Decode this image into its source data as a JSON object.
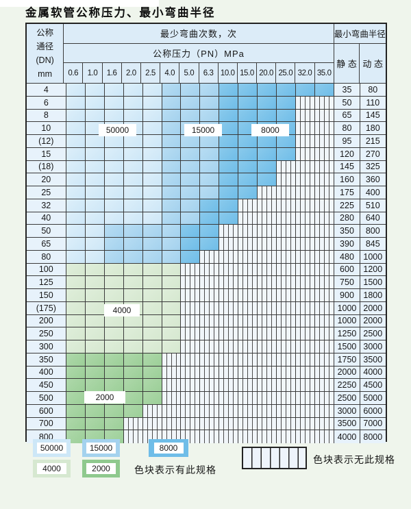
{
  "title": "金属软管公称压力、最小弯曲半径",
  "colors": {
    "c50000": "#cde7f7",
    "c15000": "#a4d2ee",
    "c8000": "#6fbde8",
    "c4000": "#d6e8d0",
    "c2000": "#9ccf98",
    "grid": "#3a3a3a",
    "page_background": "#eff5ec"
  },
  "table": {
    "corner": {
      "line1": "公称",
      "line2": "通径",
      "line3": "(DN)",
      "line4": "mm"
    },
    "bend_cycles_header": "最少弯曲次数，次",
    "pressure_header": "公称压力（PN）MPa",
    "radius_header": "最小弯曲半径",
    "static_header": "静 态",
    "dynamic_header": "动 态",
    "pressure_columns": [
      "0.6",
      "1.0",
      "1.6",
      "2.0",
      "2.5",
      "4.0",
      "5.0",
      "6.3",
      "10.0",
      "15.0",
      "20.0",
      "25.0",
      "32.0",
      "35.0"
    ],
    "cell_legend_map": {
      "L": "50000",
      "M": "15000",
      "D": "8000",
      "G": "4000",
      "E": "2000",
      "X": "no-spec-hatched"
    },
    "rows": [
      {
        "dn": "4",
        "cells": "LLLLLMMMDDDDDD",
        "static": "35",
        "dynamic": "80"
      },
      {
        "dn": "6",
        "cells": "LLLLLMMMDDDDXX",
        "static": "50",
        "dynamic": "110"
      },
      {
        "dn": "8",
        "cells": "LLLLLMMMDDDDXX",
        "static": "65",
        "dynamic": "145"
      },
      {
        "dn": "10",
        "cells": "LLLLLMMMDDDDXX",
        "static": "80",
        "dynamic": "180"
      },
      {
        "dn": "(12)",
        "cells": "LLLLLMMMDDDDXX",
        "static": "95",
        "dynamic": "215"
      },
      {
        "dn": "15",
        "cells": "LLLLLMMMDDDDXX",
        "static": "120",
        "dynamic": "270"
      },
      {
        "dn": "(18)",
        "cells": "LLLLLMMMDDDXXX",
        "static": "145",
        "dynamic": "325"
      },
      {
        "dn": "20",
        "cells": "LLLLLMMMDDDXXX",
        "static": "160",
        "dynamic": "360"
      },
      {
        "dn": "25",
        "cells": "LLLLLMMMDDXXXX",
        "static": "175",
        "dynamic": "400"
      },
      {
        "dn": "32",
        "cells": "LLLLLMMDDXXXXX",
        "static": "225",
        "dynamic": "510"
      },
      {
        "dn": "40",
        "cells": "LLLLLMMDDXXXXX",
        "static": "280",
        "dynamic": "640"
      },
      {
        "dn": "50",
        "cells": "LLMMMMDDXXXXXX",
        "static": "350",
        "dynamic": "800"
      },
      {
        "dn": "65",
        "cells": "LLMMMMDDXXXXXX",
        "static": "390",
        "dynamic": "845"
      },
      {
        "dn": "80",
        "cells": "LLMMMMDXXXXXXX",
        "static": "480",
        "dynamic": "1000"
      },
      {
        "dn": "100",
        "cells": "GGGGGGXXXXXXXX",
        "static": "600",
        "dynamic": "1200"
      },
      {
        "dn": "125",
        "cells": "GGGGGGXXXXXXXX",
        "static": "750",
        "dynamic": "1500"
      },
      {
        "dn": "150",
        "cells": "GGGGGGXXXXXXXX",
        "static": "900",
        "dynamic": "1800"
      },
      {
        "dn": "(175)",
        "cells": "GGGGGGXXXXXXXX",
        "static": "1000",
        "dynamic": "2000"
      },
      {
        "dn": "200",
        "cells": "GGGGGGXXXXXXXX",
        "static": "1000",
        "dynamic": "2000"
      },
      {
        "dn": "250",
        "cells": "GGGGGGXXXXXXXX",
        "static": "1250",
        "dynamic": "2500"
      },
      {
        "dn": "300",
        "cells": "GGGGGGXXXXXXXX",
        "static": "1500",
        "dynamic": "3000"
      },
      {
        "dn": "350",
        "cells": "EEEEEXXXXXXXXX",
        "static": "1750",
        "dynamic": "3500"
      },
      {
        "dn": "400",
        "cells": "EEEEEXXXXXXXXX",
        "static": "2000",
        "dynamic": "4000"
      },
      {
        "dn": "450",
        "cells": "EEEEEXXXXXXXXX",
        "static": "2250",
        "dynamic": "4500"
      },
      {
        "dn": "500",
        "cells": "EEEEEXXXXXXXXX",
        "static": "2500",
        "dynamic": "5000"
      },
      {
        "dn": "600",
        "cells": "EEEEXXXXXXXXXX",
        "static": "3000",
        "dynamic": "6000"
      },
      {
        "dn": "700",
        "cells": "EEEXXXXXXXXXXX",
        "static": "3500",
        "dynamic": "7000"
      },
      {
        "dn": "800",
        "cells": "EEEXXXXXXXXXXX",
        "static": "4000",
        "dynamic": "8000"
      }
    ]
  },
  "overlays": {
    "label_50000": "50000",
    "label_15000": "15000",
    "label_8000": "8000",
    "label_4000": "4000",
    "label_2000": "2000"
  },
  "legend": {
    "sw_50000": "50000",
    "sw_15000": "15000",
    "sw_8000": "8000",
    "sw_4000": "4000",
    "sw_2000": "2000",
    "has_spec_note": "色块表示有此规格",
    "no_spec_note": "色块表示无此规格"
  }
}
